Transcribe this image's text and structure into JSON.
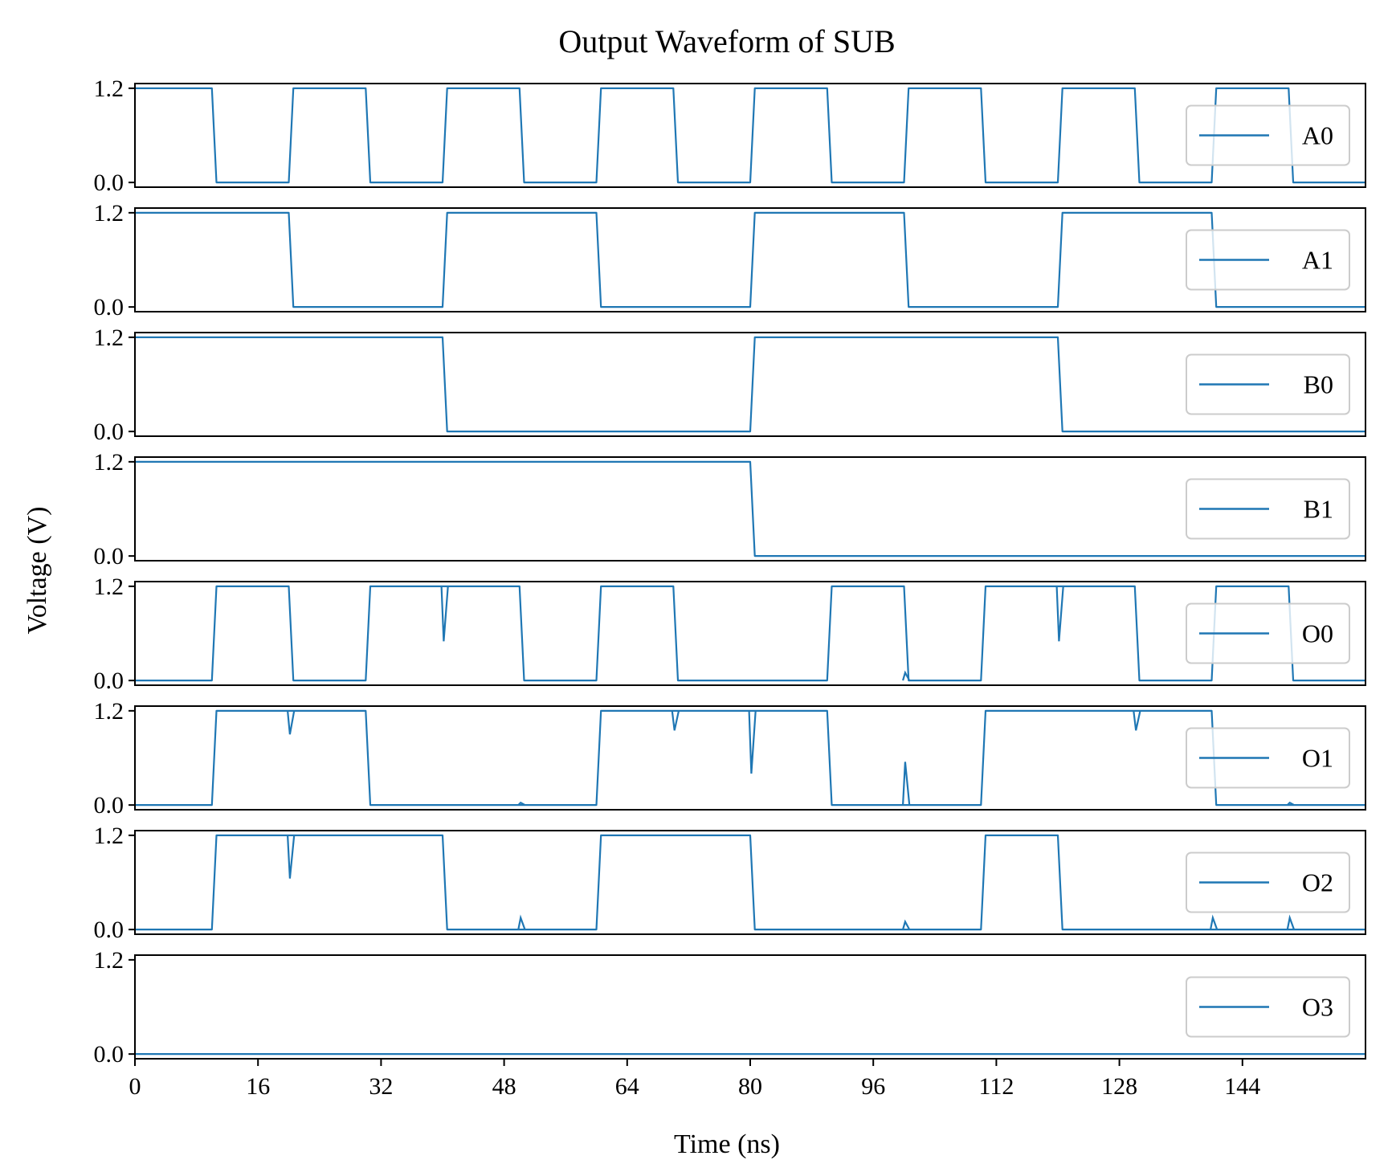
{
  "chart_data": {
    "type": "line",
    "title": "Output Waveform of SUB",
    "xlabel": "Time (ns)",
    "ylabel": "Voltage (V)",
    "xlim": [
      0,
      160
    ],
    "ylim": [
      -0.06,
      1.26
    ],
    "x_ticks": [
      0,
      16,
      32,
      48,
      64,
      80,
      96,
      112,
      128,
      144
    ],
    "y_ticks": [
      0.0,
      1.2
    ],
    "y_tick_labels": [
      "0.0",
      "1.2"
    ],
    "grid": false,
    "legend_position": "right",
    "line_color": "#1f77b4",
    "series": [
      {
        "name": "A0",
        "edges": [
          [
            0,
            1.2
          ],
          [
            10,
            0
          ],
          [
            20,
            1.2
          ],
          [
            30,
            0
          ],
          [
            40,
            1.2
          ],
          [
            50,
            0
          ],
          [
            60,
            1.2
          ],
          [
            70,
            0
          ],
          [
            80,
            1.2
          ],
          [
            90,
            0
          ],
          [
            100,
            1.2
          ],
          [
            110,
            0
          ],
          [
            120,
            1.2
          ],
          [
            130,
            0
          ],
          [
            140,
            1.2
          ],
          [
            150,
            0
          ]
        ]
      },
      {
        "name": "A1",
        "edges": [
          [
            0,
            1.2
          ],
          [
            20,
            0
          ],
          [
            40,
            1.2
          ],
          [
            60,
            0
          ],
          [
            80,
            1.2
          ],
          [
            100,
            0
          ],
          [
            120,
            1.2
          ],
          [
            140,
            0
          ]
        ]
      },
      {
        "name": "B0",
        "edges": [
          [
            0,
            1.2
          ],
          [
            40,
            0
          ],
          [
            80,
            1.2
          ],
          [
            120,
            0
          ]
        ]
      },
      {
        "name": "B1",
        "edges": [
          [
            0,
            1.2
          ],
          [
            80,
            0
          ]
        ]
      },
      {
        "name": "O0",
        "edges": [
          [
            0,
            0
          ],
          [
            10,
            1.2
          ],
          [
            20,
            0
          ],
          [
            30,
            1.2
          ],
          [
            50,
            0
          ],
          [
            60,
            1.2
          ],
          [
            70,
            0
          ],
          [
            90,
            1.2
          ],
          [
            100,
            0
          ],
          [
            110,
            1.2
          ],
          [
            130,
            0
          ],
          [
            140,
            1.2
          ],
          [
            150,
            0
          ]
        ],
        "glitches": [
          [
            40,
            0.5
          ],
          [
            120,
            0.5
          ],
          [
            100,
            0.1
          ]
        ]
      },
      {
        "name": "O1",
        "edges": [
          [
            0,
            0
          ],
          [
            10,
            1.2
          ],
          [
            30,
            0
          ],
          [
            60,
            1.2
          ],
          [
            90,
            0
          ],
          [
            110,
            1.2
          ],
          [
            140,
            0
          ]
        ],
        "glitches": [
          [
            20,
            0.9
          ],
          [
            70,
            0.95
          ],
          [
            80,
            0.4
          ],
          [
            100,
            0.55
          ],
          [
            130,
            0.95
          ],
          [
            50,
            0.03
          ],
          [
            150,
            0.03
          ]
        ]
      },
      {
        "name": "O2",
        "edges": [
          [
            0,
            0
          ],
          [
            10,
            1.2
          ],
          [
            40,
            0
          ],
          [
            60,
            1.2
          ],
          [
            80,
            0
          ],
          [
            110,
            1.2
          ],
          [
            120,
            0
          ]
        ],
        "glitches": [
          [
            20,
            0.65
          ],
          [
            50,
            0.15
          ],
          [
            100,
            0.1
          ],
          [
            140,
            0.15
          ],
          [
            150,
            0.15
          ]
        ]
      },
      {
        "name": "O3",
        "edges": [
          [
            0,
            0
          ]
        ]
      }
    ]
  }
}
